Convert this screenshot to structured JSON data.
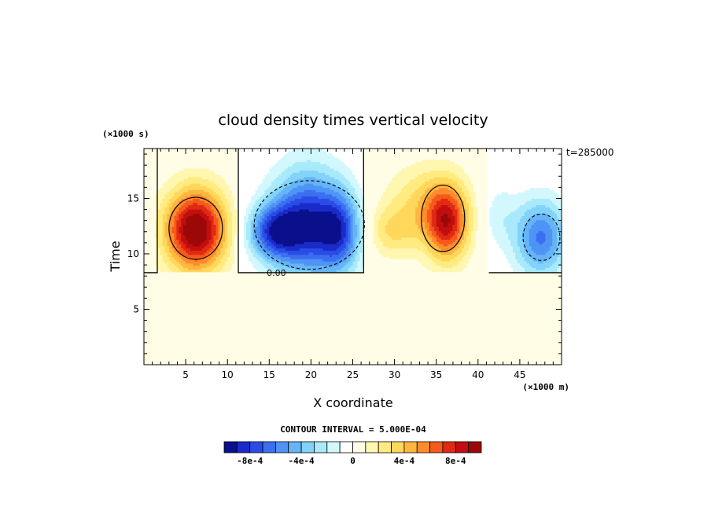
{
  "chart_data": {
    "type": "heatmap",
    "title": "cloud density times vertical velocity",
    "xlabel": "X coordinate",
    "ylabel": "Time",
    "x_unit": "(×1000 m)",
    "y_unit": "(×1000 s)",
    "time_label": "t=285000",
    "contour_interval": "CONTOUR INTERVAL = 5.000E-04",
    "xlim": [
      0,
      50
    ],
    "ylim": [
      0,
      19.5
    ],
    "x_ticks": [
      5,
      10,
      15,
      20,
      25,
      30,
      35,
      40,
      45
    ],
    "y_ticks": [
      5,
      10,
      15
    ],
    "contour_line_label": "0.00",
    "colorbar": {
      "levels": [
        -0.001,
        -0.0009,
        -0.0008,
        -0.0007,
        -0.0006,
        -0.0005,
        -0.0004,
        -0.0003,
        -0.0002,
        -0.0001,
        0,
        0.0001,
        0.0002,
        0.0003,
        0.0004,
        0.0005,
        0.0006,
        0.0007,
        0.0008,
        0.0009,
        0.001
      ],
      "colors": [
        "#0a0f8c",
        "#1a2bc8",
        "#2a4ce6",
        "#3b6ff0",
        "#4f94f4",
        "#65b4f7",
        "#82d2fa",
        "#a8eafc",
        "#d2f8fd",
        "#ffffff",
        "#fffde6",
        "#fff7b0",
        "#ffeb80",
        "#ffd75a",
        "#ffb640",
        "#ff8c2a",
        "#f55a1c",
        "#e02a14",
        "#c20e0e",
        "#9c0808"
      ],
      "tick_labels": [
        "-8e-4",
        "-4e-4",
        "0",
        "4e-4",
        "8e-4"
      ],
      "tick_values": [
        -0.0008,
        -0.0004,
        0,
        0.0004,
        0.0008
      ]
    },
    "background_value": 5e-05,
    "features": [
      {
        "x": 6.2,
        "y": 12.2,
        "sx": 2.6,
        "sy": 2.6,
        "amp": 0.00105
      },
      {
        "x": 15.5,
        "y": 12.0,
        "sx": 2.2,
        "sy": 1.7,
        "amp": -0.00065
      },
      {
        "x": 19.5,
        "y": 12.8,
        "sx": 3.0,
        "sy": 3.3,
        "amp": -0.00085
      },
      {
        "x": 23.5,
        "y": 12.0,
        "sx": 1.8,
        "sy": 2.5,
        "amp": -0.0006
      },
      {
        "x": 29.5,
        "y": 12.0,
        "sx": 2.2,
        "sy": 1.6,
        "amp": 0.00025
      },
      {
        "x": 33.5,
        "y": 14.5,
        "sx": 3.2,
        "sy": 2.5,
        "amp": 0.0003
      },
      {
        "x": 36.3,
        "y": 12.8,
        "sx": 1.8,
        "sy": 2.4,
        "amp": 0.00075
      },
      {
        "x": 42.5,
        "y": 13.5,
        "sx": 1.5,
        "sy": 2.0,
        "amp": -0.00015
      },
      {
        "x": 47.5,
        "y": 11.5,
        "sx": 2.2,
        "sy": 2.4,
        "amp": -0.00062
      }
    ],
    "regions": [
      {
        "x0": 1.5,
        "x1": 11.2,
        "type": "pos"
      },
      {
        "x0": 11.2,
        "x1": 26.5,
        "type": "neg"
      },
      {
        "x0": 26.5,
        "x1": 41.0,
        "type": "pos"
      },
      {
        "x0": 41.0,
        "x1": 50,
        "type": "neg"
      }
    ],
    "cloud_base_y": 8.3,
    "grid": false,
    "legend": "bottom"
  }
}
